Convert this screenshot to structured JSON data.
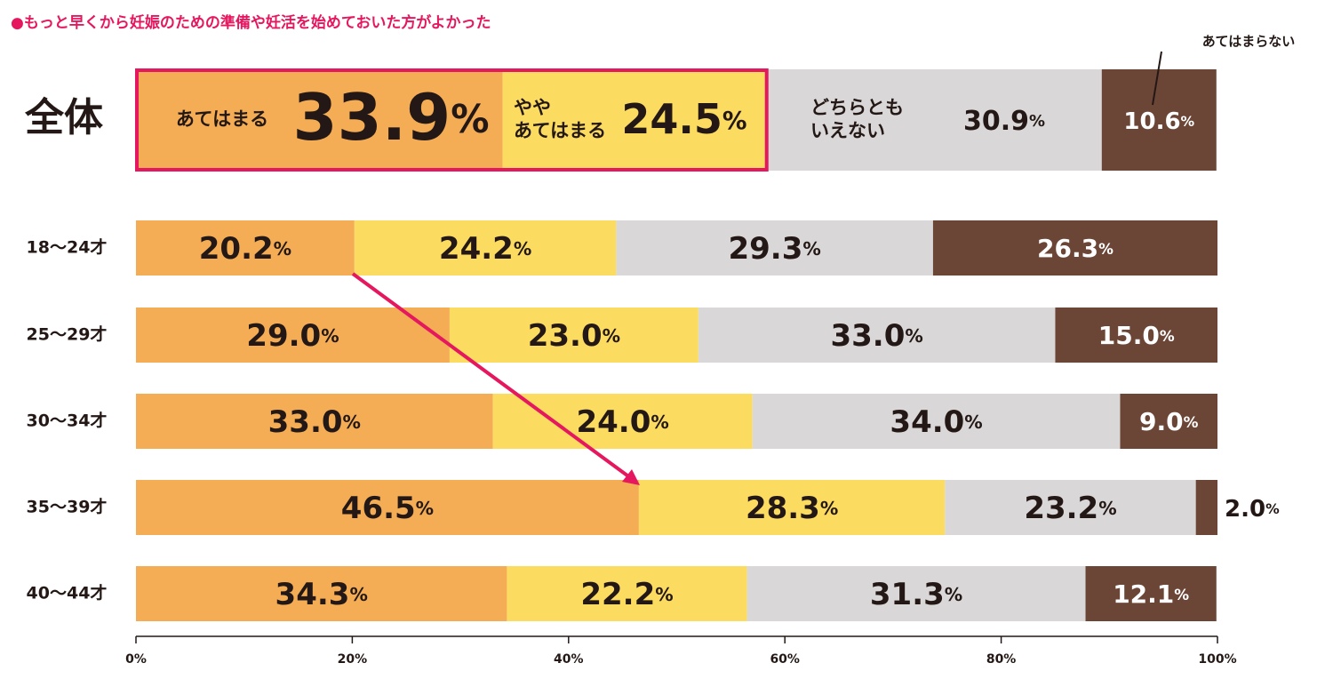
{
  "chart_data": {
    "type": "stacked-bar",
    "title": "●もっと早くから妊娠のための準備や妊活を始めておいた方がよかった",
    "categories": [
      "全体",
      "18〜24才",
      "25〜29才",
      "30〜34才",
      "35〜39才",
      "40〜44才"
    ],
    "series": [
      {
        "name": "あてはまる",
        "color": "#f4ad55",
        "values": [
          33.9,
          20.2,
          29.0,
          33.0,
          46.5,
          34.3
        ],
        "value_labels": [
          "33.9%",
          "20.2%",
          "29.0%",
          "33.0%",
          "46.5%",
          "34.3%"
        ]
      },
      {
        "name": "やや\nあてはまる",
        "color": "#fcdb61",
        "values": [
          24.5,
          24.2,
          23.0,
          24.0,
          28.3,
          22.2
        ],
        "value_labels": [
          "24.5%",
          "24.2%",
          "23.0%",
          "24.0%",
          "28.3%",
          "22.2%"
        ]
      },
      {
        "name": "どちらとも\nいえない",
        "color": "#d9d7d8",
        "values": [
          30.9,
          29.3,
          33.0,
          34.0,
          23.2,
          31.3
        ],
        "value_labels": [
          "30.9%",
          "29.3%",
          "33.0%",
          "34.0%",
          "23.2%",
          "31.3%"
        ]
      },
      {
        "name": "あてはまらない",
        "color": "#6b4536",
        "values": [
          10.6,
          26.3,
          15.0,
          9.0,
          2.0,
          12.1
        ],
        "value_labels": [
          "10.6%",
          "26.3%",
          "15.0%",
          "9.0%",
          "2.0%",
          "12.1%"
        ]
      }
    ],
    "xlim": [
      0,
      100
    ],
    "xticks": [
      {
        "value": 0,
        "label": "0%"
      },
      {
        "value": 20,
        "label": "20%"
      },
      {
        "value": 40,
        "label": "40%"
      },
      {
        "value": 60,
        "label": "60%"
      },
      {
        "value": 80,
        "label": "80%"
      },
      {
        "value": 100,
        "label": "100%"
      }
    ]
  }
}
